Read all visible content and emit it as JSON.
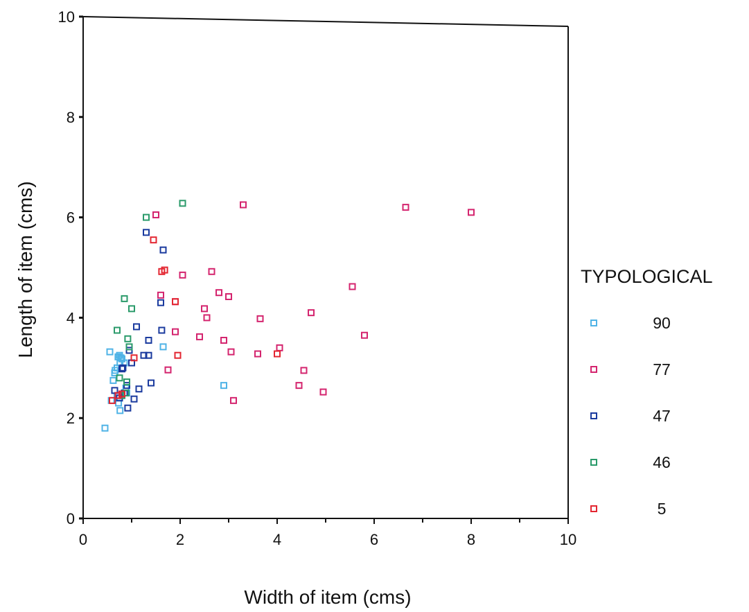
{
  "chart_data": {
    "type": "scatter",
    "xlabel": "Width of item (cms)",
    "ylabel": "Length of item (cms)",
    "xlim": [
      0,
      10
    ],
    "ylim": [
      0,
      10
    ],
    "x_ticks": [
      "0",
      "2",
      "4",
      "6",
      "8",
      "10"
    ],
    "y_ticks": [
      "0",
      "2",
      "4",
      "6",
      "8",
      "10"
    ],
    "grid": false,
    "legend_title": "TYPOLOGICAL",
    "legend_position": "right",
    "series": [
      {
        "name": "90",
        "color": "#4fb3e6",
        "x": [
          0.45,
          0.55,
          0.58,
          0.62,
          0.65,
          0.66,
          0.7,
          0.72,
          0.75,
          0.76,
          0.78,
          0.8,
          0.85,
          0.88,
          0.9,
          0.76,
          0.8,
          0.73,
          0.7,
          1.65,
          2.9
        ],
        "y": [
          1.8,
          3.32,
          2.35,
          2.75,
          2.9,
          2.95,
          3.0,
          3.22,
          3.25,
          3.1,
          3.2,
          3.18,
          3.1,
          2.6,
          2.5,
          2.15,
          2.45,
          2.3,
          2.45,
          3.42,
          2.65
        ]
      },
      {
        "name": "77",
        "color": "#d4246e",
        "x": [
          1.5,
          1.6,
          1.9,
          2.05,
          2.4,
          2.5,
          2.55,
          2.65,
          2.8,
          2.9,
          3.0,
          3.05,
          3.1,
          3.3,
          3.6,
          3.65,
          4.05,
          4.45,
          4.55,
          4.7,
          4.95,
          5.55,
          5.8,
          6.65,
          8.0,
          1.75,
          1.9
        ],
        "y": [
          6.05,
          4.45,
          3.72,
          4.85,
          3.62,
          4.18,
          4.0,
          4.92,
          4.5,
          3.55,
          4.42,
          3.32,
          2.35,
          6.25,
          3.28,
          3.98,
          3.4,
          2.65,
          2.95,
          4.1,
          2.52,
          4.62,
          3.65,
          6.2,
          6.1,
          2.96,
          4.32
        ]
      },
      {
        "name": "47",
        "color": "#1a3a9e",
        "x": [
          0.65,
          0.75,
          0.8,
          0.82,
          0.85,
          0.9,
          0.92,
          0.95,
          1.0,
          1.05,
          1.1,
          1.15,
          1.25,
          1.3,
          1.35,
          1.35,
          1.4,
          1.6,
          1.62,
          1.65
        ],
        "y": [
          2.55,
          2.4,
          2.98,
          3.0,
          2.5,
          2.65,
          2.2,
          3.35,
          3.1,
          2.38,
          3.82,
          2.58,
          3.25,
          5.7,
          3.55,
          3.25,
          2.7,
          4.3,
          3.75,
          5.35
        ]
      },
      {
        "name": "46",
        "color": "#2a9a6a",
        "x": [
          0.7,
          0.75,
          0.8,
          0.85,
          0.88,
          0.92,
          0.95,
          1.0,
          1.3,
          2.05,
          0.9
        ],
        "y": [
          3.75,
          2.8,
          2.45,
          4.38,
          2.5,
          3.58,
          3.42,
          4.18,
          6.0,
          6.28,
          2.72
        ]
      },
      {
        "name": "5",
        "color": "#e32631",
        "x": [
          0.6,
          0.72,
          1.05,
          1.45,
          1.62,
          1.68,
          1.9,
          1.95,
          4.0,
          0.8
        ],
        "y": [
          2.35,
          2.45,
          3.2,
          5.55,
          4.92,
          4.95,
          4.32,
          3.25,
          3.28,
          2.48
        ]
      }
    ]
  }
}
